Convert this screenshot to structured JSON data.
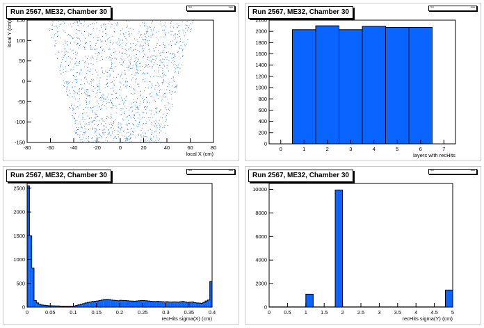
{
  "colors": {
    "fill": "#0a64ff",
    "frame": "#000000",
    "scatter": "#2a7fd4"
  },
  "panels": [
    {
      "title": "Run 2567, ME32, Chamber 30",
      "stats": [
        "hist",
        "stats"
      ]
    },
    {
      "title": "Run 2567, ME32, Chamber 30",
      "stats": [
        "hist",
        "stats"
      ]
    },
    {
      "title": "Run 2567, ME32, Chamber 30",
      "stats": [
        "hist",
        "stats"
      ]
    },
    {
      "title": "Run 2567, ME32, Chamber 30",
      "stats": [
        "hist",
        "stats"
      ]
    }
  ],
  "chart_data": [
    {
      "type": "scatter",
      "title": "Run 2567, ME32, Chamber 30",
      "xlabel": "local X (cm)",
      "ylabel": "local Y (cm)",
      "xlim": [
        -80,
        80
      ],
      "ylim": [
        -150,
        150
      ],
      "xticks": [
        -80,
        -60,
        -40,
        -20,
        0,
        20,
        40,
        60,
        80
      ],
      "yticks": [
        -150,
        -100,
        -50,
        0,
        50,
        100,
        150
      ],
      "region": {
        "top_y": 150,
        "bottom_y": -150,
        "top_half_width": 63,
        "bottom_half_width": 37
      }
    },
    {
      "type": "bar",
      "title": "Run 2567, ME32, Chamber 30",
      "xlabel": "layers with recHits",
      "ylabel": "",
      "xlim": [
        -0.5,
        7.5
      ],
      "ylim": [
        0,
        2200
      ],
      "xticks": [
        0,
        1,
        2,
        3,
        4,
        5,
        6,
        7
      ],
      "yticks": [
        0,
        200,
        400,
        600,
        800,
        1000,
        1200,
        1400,
        1600,
        1800,
        2000,
        2200
      ],
      "bins": [
        {
          "lo": 0.5,
          "hi": 1.5,
          "value": 2030
        },
        {
          "lo": 1.5,
          "hi": 2.5,
          "value": 2100
        },
        {
          "lo": 2.5,
          "hi": 3.5,
          "value": 2030
        },
        {
          "lo": 3.5,
          "hi": 4.5,
          "value": 2090
        },
        {
          "lo": 4.5,
          "hi": 5.5,
          "value": 2070
        },
        {
          "lo": 5.5,
          "hi": 6.5,
          "value": 2070
        }
      ]
    },
    {
      "type": "bar",
      "title": "Run 2567, ME32, Chamber 30",
      "xlabel": "recHits sigma(X) (cm)",
      "ylabel": "",
      "xlim": [
        0,
        0.4
      ],
      "ylim": [
        0,
        2600
      ],
      "xticks": [
        0,
        0.05,
        0.1,
        0.15,
        0.2,
        0.25,
        0.3,
        0.35,
        0.4
      ],
      "yticks": [
        0,
        500,
        1000,
        1500,
        2000,
        2500
      ],
      "bin_width": 0.005,
      "values": [
        2550,
        1500,
        820,
        140,
        90,
        60,
        45,
        40,
        35,
        30,
        30,
        28,
        25,
        25,
        22,
        22,
        20,
        20,
        20,
        20,
        25,
        35,
        50,
        60,
        75,
        90,
        100,
        110,
        120,
        125,
        130,
        140,
        150,
        160,
        165,
        160,
        150,
        145,
        140,
        135,
        145,
        140,
        138,
        135,
        130,
        128,
        125,
        130,
        135,
        140,
        138,
        135,
        130,
        125,
        120,
        118,
        122,
        118,
        115,
        110,
        115,
        110,
        108,
        112,
        110,
        105,
        115,
        120,
        110,
        100,
        105,
        110,
        95,
        90,
        85,
        80,
        100,
        130,
        150,
        540
      ]
    },
    {
      "type": "bar",
      "title": "Run 2567, ME32, Chamber 30",
      "xlabel": "recHits sigma(Y) (cm)",
      "ylabel": "",
      "xlim": [
        0,
        5
      ],
      "ylim": [
        0,
        10500
      ],
      "xticks": [
        0,
        0.5,
        1,
        1.5,
        2,
        2.5,
        3,
        3.5,
        4,
        4.5,
        5
      ],
      "xtick_labels": [
        "0",
        "0.5",
        "1",
        "1.5",
        "2",
        "2.5",
        "3",
        "3.5",
        "4",
        "4.5",
        "5"
      ],
      "yticks": [
        0,
        2000,
        4000,
        6000,
        8000,
        10000
      ],
      "bin_width": 0.2,
      "values": [
        20,
        20,
        20,
        20,
        20,
        1100,
        20,
        20,
        20,
        9950,
        20,
        20,
        20,
        20,
        20,
        20,
        20,
        20,
        20,
        20,
        20,
        20,
        20,
        20,
        1450
      ]
    }
  ]
}
